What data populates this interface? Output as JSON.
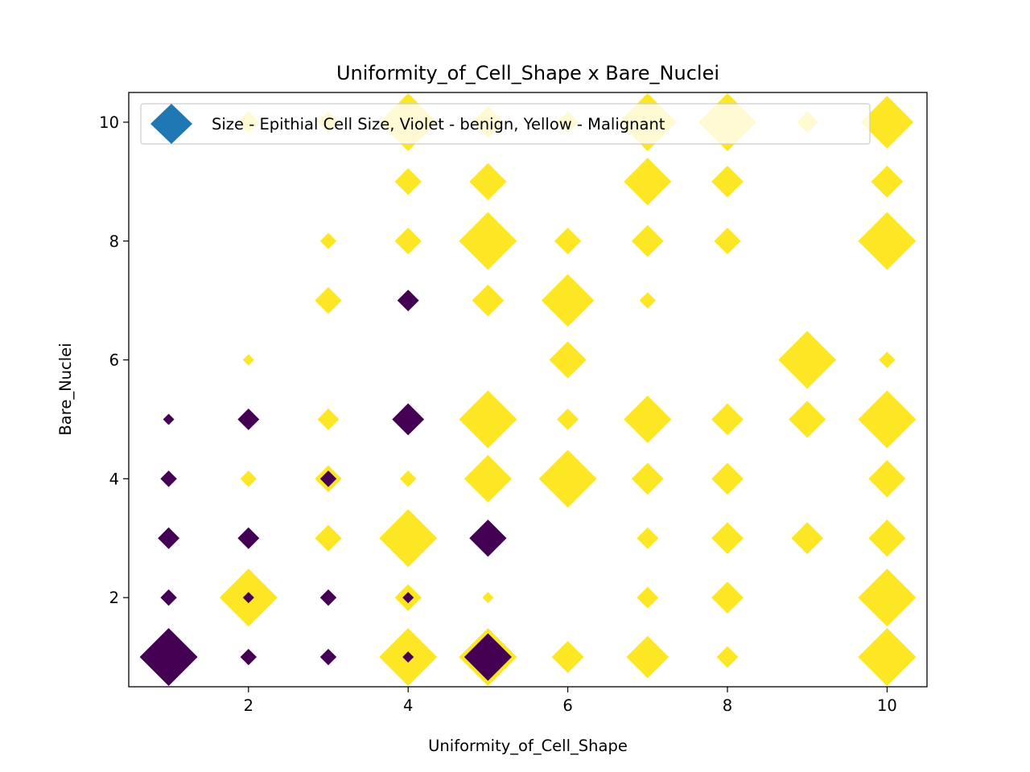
{
  "chart_data": {
    "type": "scatter",
    "title": "Uniformity_of_Cell_Shape x Bare_Nuclei",
    "xlabel": "Uniformity_of_Cell_Shape",
    "ylabel": "Bare_Nuclei",
    "xlim": [
      0.5,
      10.5
    ],
    "ylim": [
      0.5,
      10.5
    ],
    "xticks": [
      2,
      4,
      6,
      8,
      10
    ],
    "yticks": [
      2,
      4,
      6,
      8,
      10
    ],
    "grid": false,
    "marker": "diamond",
    "legend": {
      "label": "Size - Epithial Cell Size, Violet - benign, Yellow - Malignant",
      "placement": "upper-left",
      "marker_color": "#1f77b4"
    },
    "colors": {
      "benign": "#440154",
      "malignant": "#fde725"
    },
    "size_meaning": "Epithial Cell Size",
    "points": [
      {
        "x": 1,
        "y": 1,
        "size": 10,
        "class": "benign"
      },
      {
        "x": 1,
        "y": 2,
        "size": 2,
        "class": "benign"
      },
      {
        "x": 1,
        "y": 3,
        "size": 3,
        "class": "benign"
      },
      {
        "x": 1,
        "y": 4,
        "size": 2,
        "class": "benign"
      },
      {
        "x": 1,
        "y": 5,
        "size": 1,
        "class": "benign"
      },
      {
        "x": 2,
        "y": 10,
        "size": 3,
        "class": "malignant"
      },
      {
        "x": 2,
        "y": 6,
        "size": 1,
        "class": "malignant"
      },
      {
        "x": 2,
        "y": 5,
        "size": 3,
        "class": "benign"
      },
      {
        "x": 2,
        "y": 4,
        "size": 2,
        "class": "malignant"
      },
      {
        "x": 2,
        "y": 3,
        "size": 3,
        "class": "benign"
      },
      {
        "x": 2,
        "y": 2,
        "size": 10,
        "class": "malignant"
      },
      {
        "x": 2,
        "y": 2,
        "size": 1,
        "class": "benign"
      },
      {
        "x": 2,
        "y": 1,
        "size": 2,
        "class": "benign"
      },
      {
        "x": 3,
        "y": 10,
        "size": 3,
        "class": "malignant"
      },
      {
        "x": 3,
        "y": 8,
        "size": 2,
        "class": "malignant"
      },
      {
        "x": 3,
        "y": 7,
        "size": 4,
        "class": "malignant"
      },
      {
        "x": 3,
        "y": 5,
        "size": 3,
        "class": "malignant"
      },
      {
        "x": 3,
        "y": 4,
        "size": 4,
        "class": "malignant"
      },
      {
        "x": 3,
        "y": 4,
        "size": 2,
        "class": "benign"
      },
      {
        "x": 3,
        "y": 3,
        "size": 4,
        "class": "malignant"
      },
      {
        "x": 3,
        "y": 2,
        "size": 2,
        "class": "benign"
      },
      {
        "x": 3,
        "y": 1,
        "size": 2,
        "class": "benign"
      },
      {
        "x": 4,
        "y": 10,
        "size": 10,
        "class": "malignant"
      },
      {
        "x": 4,
        "y": 9,
        "size": 4,
        "class": "malignant"
      },
      {
        "x": 4,
        "y": 8,
        "size": 4,
        "class": "malignant"
      },
      {
        "x": 4,
        "y": 7,
        "size": 3,
        "class": "benign"
      },
      {
        "x": 4,
        "y": 5,
        "size": 5,
        "class": "benign"
      },
      {
        "x": 4,
        "y": 4,
        "size": 2,
        "class": "malignant"
      },
      {
        "x": 4,
        "y": 3,
        "size": 10,
        "class": "malignant"
      },
      {
        "x": 4,
        "y": 2,
        "size": 4,
        "class": "malignant"
      },
      {
        "x": 4,
        "y": 2,
        "size": 1,
        "class": "benign"
      },
      {
        "x": 4,
        "y": 1,
        "size": 10,
        "class": "malignant"
      },
      {
        "x": 4,
        "y": 1,
        "size": 1,
        "class": "benign"
      },
      {
        "x": 5,
        "y": 10,
        "size": 5,
        "class": "malignant"
      },
      {
        "x": 5,
        "y": 9,
        "size": 6,
        "class": "malignant"
      },
      {
        "x": 5,
        "y": 8,
        "size": 10,
        "class": "malignant"
      },
      {
        "x": 5,
        "y": 7,
        "size": 5,
        "class": "malignant"
      },
      {
        "x": 5,
        "y": 5,
        "size": 10,
        "class": "malignant"
      },
      {
        "x": 5,
        "y": 4,
        "size": 8,
        "class": "malignant"
      },
      {
        "x": 5,
        "y": 3,
        "size": 6,
        "class": "benign"
      },
      {
        "x": 5,
        "y": 2,
        "size": 1,
        "class": "malignant"
      },
      {
        "x": 5,
        "y": 1,
        "size": 10,
        "class": "malignant"
      },
      {
        "x": 5,
        "y": 1,
        "size": 8,
        "class": "benign"
      },
      {
        "x": 6,
        "y": 10,
        "size": 3,
        "class": "malignant"
      },
      {
        "x": 6,
        "y": 8,
        "size": 4,
        "class": "malignant"
      },
      {
        "x": 6,
        "y": 7,
        "size": 9,
        "class": "malignant"
      },
      {
        "x": 6,
        "y": 6,
        "size": 6,
        "class": "malignant"
      },
      {
        "x": 6,
        "y": 5,
        "size": 3,
        "class": "malignant"
      },
      {
        "x": 6,
        "y": 4,
        "size": 10,
        "class": "malignant"
      },
      {
        "x": 6,
        "y": 1,
        "size": 5,
        "class": "malignant"
      },
      {
        "x": 7,
        "y": 10,
        "size": 10,
        "class": "malignant"
      },
      {
        "x": 7,
        "y": 9,
        "size": 8,
        "class": "malignant"
      },
      {
        "x": 7,
        "y": 8,
        "size": 5,
        "class": "malignant"
      },
      {
        "x": 7,
        "y": 7,
        "size": 2,
        "class": "malignant"
      },
      {
        "x": 7,
        "y": 5,
        "size": 8,
        "class": "malignant"
      },
      {
        "x": 7,
        "y": 4,
        "size": 5,
        "class": "malignant"
      },
      {
        "x": 7,
        "y": 3,
        "size": 3,
        "class": "malignant"
      },
      {
        "x": 7,
        "y": 2,
        "size": 3,
        "class": "malignant"
      },
      {
        "x": 7,
        "y": 1,
        "size": 7,
        "class": "malignant"
      },
      {
        "x": 8,
        "y": 10,
        "size": 10,
        "class": "malignant"
      },
      {
        "x": 8,
        "y": 9,
        "size": 5,
        "class": "malignant"
      },
      {
        "x": 8,
        "y": 8,
        "size": 4,
        "class": "malignant"
      },
      {
        "x": 8,
        "y": 5,
        "size": 5,
        "class": "malignant"
      },
      {
        "x": 8,
        "y": 4,
        "size": 5,
        "class": "malignant"
      },
      {
        "x": 8,
        "y": 3,
        "size": 5,
        "class": "malignant"
      },
      {
        "x": 8,
        "y": 2,
        "size": 5,
        "class": "malignant"
      },
      {
        "x": 8,
        "y": 1,
        "size": 3,
        "class": "malignant"
      },
      {
        "x": 9,
        "y": 10,
        "size": 3,
        "class": "malignant"
      },
      {
        "x": 9,
        "y": 6,
        "size": 10,
        "class": "malignant"
      },
      {
        "x": 9,
        "y": 5,
        "size": 6,
        "class": "malignant"
      },
      {
        "x": 9,
        "y": 3,
        "size": 5,
        "class": "malignant"
      },
      {
        "x": 10,
        "y": 10,
        "size": 9,
        "class": "malignant"
      },
      {
        "x": 10,
        "y": 9,
        "size": 5,
        "class": "malignant"
      },
      {
        "x": 10,
        "y": 8,
        "size": 10,
        "class": "malignant"
      },
      {
        "x": 10,
        "y": 6,
        "size": 2,
        "class": "malignant"
      },
      {
        "x": 10,
        "y": 5,
        "size": 10,
        "class": "malignant"
      },
      {
        "x": 10,
        "y": 4,
        "size": 6,
        "class": "malignant"
      },
      {
        "x": 10,
        "y": 3,
        "size": 6,
        "class": "malignant"
      },
      {
        "x": 10,
        "y": 2,
        "size": 10,
        "class": "malignant"
      },
      {
        "x": 10,
        "y": 1,
        "size": 10,
        "class": "malignant"
      }
    ]
  }
}
